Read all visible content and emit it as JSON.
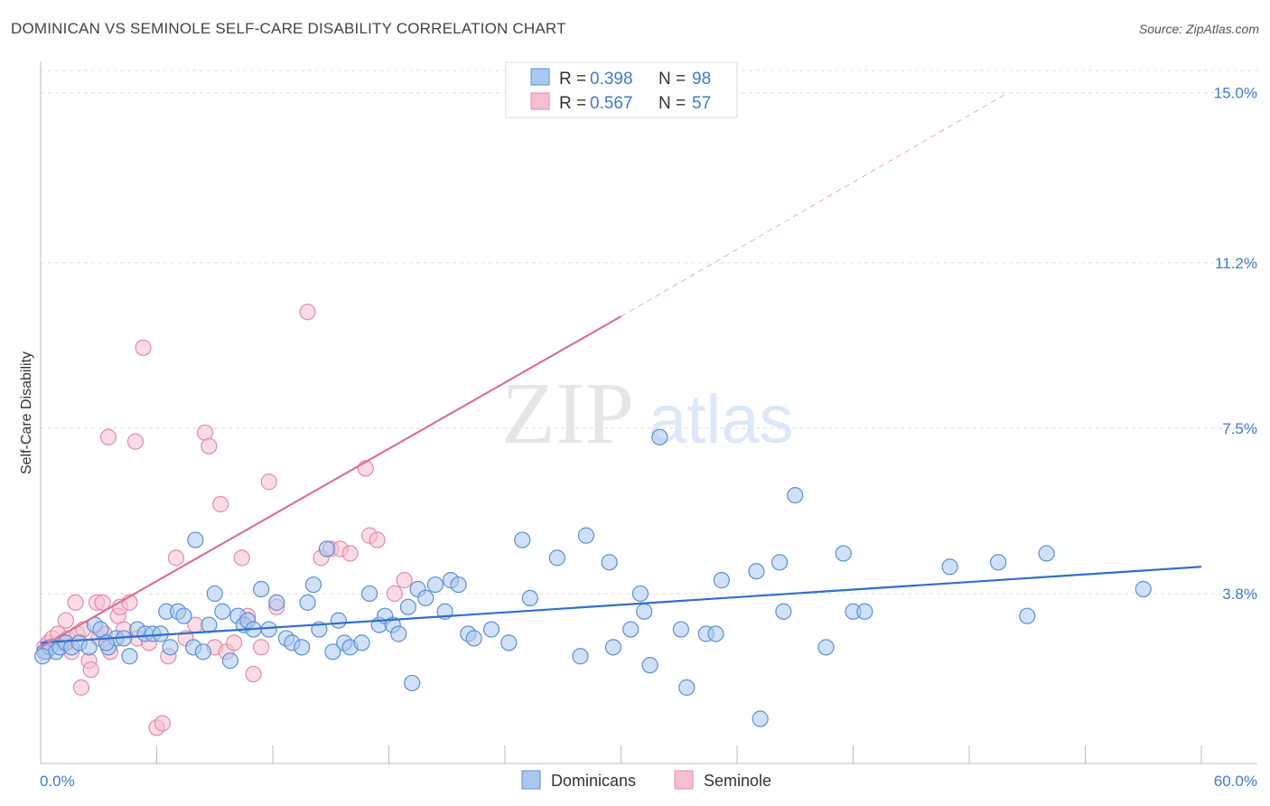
{
  "title": "DOMINICAN VS SEMINOLE SELF-CARE DISABILITY CORRELATION CHART",
  "source": "Source: ZipAtlas.com",
  "watermark": {
    "zip": "ZIP",
    "atlas": "atlas"
  },
  "legend": {
    "r_label": "R =",
    "n_label": "N =",
    "series": [
      {
        "r": "0.398",
        "n": "98"
      },
      {
        "r": "0.567",
        "n": "57"
      }
    ]
  },
  "colors": {
    "blue_fill": "#a9c8f0",
    "blue_stroke": "#5b8fd6",
    "blue_line": "#2f6fd0",
    "pink_fill": "#f7bfd0",
    "pink_stroke": "#e58aa8",
    "pink_line": "#e06e96",
    "tick_text": "#3f7bd1",
    "grid": "#dddddd"
  },
  "chart_data": {
    "type": "scatter",
    "title": "DOMINICAN VS SEMINOLE SELF-CARE DISABILITY CORRELATION CHART",
    "xlabel": "",
    "ylabel": "Self-Care Disability",
    "xlim": [
      0,
      60
    ],
    "ylim": [
      0,
      15.5
    ],
    "x_tick_labels": [
      "0.0%",
      "60.0%"
    ],
    "y_ticks": [
      3.8,
      7.5,
      11.2,
      15.0
    ],
    "y_tick_labels": [
      "3.8%",
      "7.5%",
      "11.2%",
      "15.0%"
    ],
    "series": [
      {
        "name": "Dominicans",
        "trend": {
          "x0": 0,
          "y0": 2.7,
          "x1": 60,
          "y1": 4.4,
          "dashed_to": null
        },
        "points": [
          [
            0.2,
            2.5
          ],
          [
            0.5,
            2.6
          ],
          [
            0.8,
            2.5
          ],
          [
            1.0,
            2.6
          ],
          [
            1.3,
            2.7
          ],
          [
            1.6,
            2.6
          ],
          [
            2.0,
            2.7
          ],
          [
            2.5,
            2.6
          ],
          [
            2.8,
            3.1
          ],
          [
            3.1,
            3.0
          ],
          [
            3.5,
            2.6
          ],
          [
            3.9,
            2.8
          ],
          [
            4.3,
            2.8
          ],
          [
            4.6,
            2.4
          ],
          [
            5.0,
            3.0
          ],
          [
            5.4,
            2.9
          ],
          [
            5.8,
            2.9
          ],
          [
            6.2,
            2.9
          ],
          [
            6.5,
            3.4
          ],
          [
            6.7,
            2.6
          ],
          [
            7.1,
            3.4
          ],
          [
            7.4,
            3.3
          ],
          [
            7.9,
            2.6
          ],
          [
            8.0,
            5.0
          ],
          [
            8.4,
            2.5
          ],
          [
            8.7,
            3.1
          ],
          [
            9.0,
            3.8
          ],
          [
            9.4,
            3.4
          ],
          [
            9.8,
            2.3
          ],
          [
            10.2,
            3.3
          ],
          [
            10.5,
            3.1
          ],
          [
            10.7,
            3.2
          ],
          [
            11.0,
            3.0
          ],
          [
            11.4,
            3.9
          ],
          [
            11.8,
            3.0
          ],
          [
            12.2,
            3.6
          ],
          [
            12.7,
            2.8
          ],
          [
            13.0,
            2.7
          ],
          [
            13.5,
            2.6
          ],
          [
            13.8,
            3.6
          ],
          [
            14.1,
            4.0
          ],
          [
            14.4,
            3.0
          ],
          [
            14.8,
            4.8
          ],
          [
            15.1,
            2.5
          ],
          [
            15.4,
            3.2
          ],
          [
            15.7,
            2.7
          ],
          [
            16.0,
            2.6
          ],
          [
            16.6,
            2.7
          ],
          [
            17.0,
            3.8
          ],
          [
            17.5,
            3.1
          ],
          [
            17.8,
            3.3
          ],
          [
            18.2,
            3.1
          ],
          [
            18.5,
            2.9
          ],
          [
            19.0,
            3.5
          ],
          [
            19.2,
            1.8
          ],
          [
            19.5,
            3.9
          ],
          [
            19.9,
            3.7
          ],
          [
            20.4,
            4.0
          ],
          [
            20.9,
            3.4
          ],
          [
            21.2,
            4.1
          ],
          [
            21.6,
            4.0
          ],
          [
            22.1,
            2.9
          ],
          [
            22.4,
            2.8
          ],
          [
            23.3,
            3.0
          ],
          [
            24.2,
            2.7
          ],
          [
            24.9,
            5.0
          ],
          [
            25.3,
            3.7
          ],
          [
            26.7,
            4.6
          ],
          [
            27.9,
            2.4
          ],
          [
            28.2,
            5.1
          ],
          [
            29.4,
            4.5
          ],
          [
            29.6,
            2.6
          ],
          [
            30.5,
            3.0
          ],
          [
            31.0,
            3.8
          ],
          [
            31.2,
            3.4
          ],
          [
            31.5,
            2.2
          ],
          [
            32.0,
            7.3
          ],
          [
            33.1,
            3.0
          ],
          [
            33.4,
            1.7
          ],
          [
            34.4,
            2.9
          ],
          [
            34.9,
            2.9
          ],
          [
            35.2,
            4.1
          ],
          [
            37.0,
            4.3
          ],
          [
            37.2,
            1.0
          ],
          [
            38.2,
            4.5
          ],
          [
            38.4,
            3.4
          ],
          [
            39.0,
            6.0
          ],
          [
            40.6,
            2.6
          ],
          [
            41.5,
            4.7
          ],
          [
            42.0,
            3.4
          ],
          [
            42.6,
            3.4
          ],
          [
            47.0,
            4.4
          ],
          [
            49.5,
            4.5
          ],
          [
            51.0,
            3.3
          ],
          [
            52.0,
            4.7
          ],
          [
            57.0,
            3.9
          ],
          [
            0.1,
            2.4
          ],
          [
            3.4,
            2.7
          ]
        ]
      },
      {
        "name": "Seminole",
        "trend": {
          "x0": 0,
          "y0": 2.6,
          "x1": 30,
          "y1": 10.0,
          "dashed_to": {
            "x": 50,
            "y": 15.0
          }
        },
        "points": [
          [
            0.2,
            2.6
          ],
          [
            0.4,
            2.7
          ],
          [
            0.6,
            2.8
          ],
          [
            0.9,
            2.9
          ],
          [
            1.1,
            2.7
          ],
          [
            1.3,
            3.2
          ],
          [
            1.4,
            2.8
          ],
          [
            1.6,
            2.5
          ],
          [
            1.8,
            3.6
          ],
          [
            1.9,
            2.9
          ],
          [
            2.1,
            1.7
          ],
          [
            2.2,
            3.0
          ],
          [
            2.5,
            2.3
          ],
          [
            2.6,
            2.1
          ],
          [
            2.9,
            3.6
          ],
          [
            3.0,
            2.8
          ],
          [
            3.2,
            3.6
          ],
          [
            3.3,
            2.9
          ],
          [
            3.5,
            7.3
          ],
          [
            3.6,
            2.5
          ],
          [
            4.0,
            3.3
          ],
          [
            4.1,
            3.5
          ],
          [
            4.3,
            3.0
          ],
          [
            4.6,
            3.6
          ],
          [
            4.9,
            7.2
          ],
          [
            5.0,
            2.8
          ],
          [
            5.3,
            9.3
          ],
          [
            5.6,
            2.7
          ],
          [
            6.0,
            0.8
          ],
          [
            6.3,
            0.9
          ],
          [
            6.6,
            2.4
          ],
          [
            7.0,
            4.6
          ],
          [
            7.5,
            2.8
          ],
          [
            8.0,
            3.1
          ],
          [
            8.5,
            7.4
          ],
          [
            8.7,
            7.1
          ],
          [
            9.0,
            2.6
          ],
          [
            9.3,
            5.8
          ],
          [
            9.6,
            2.5
          ],
          [
            10.0,
            2.7
          ],
          [
            10.4,
            4.6
          ],
          [
            10.7,
            3.3
          ],
          [
            11.0,
            2.0
          ],
          [
            11.4,
            2.6
          ],
          [
            11.8,
            6.3
          ],
          [
            12.2,
            3.5
          ],
          [
            13.8,
            10.1
          ],
          [
            14.5,
            4.6
          ],
          [
            15.0,
            4.8
          ],
          [
            15.5,
            4.8
          ],
          [
            16.0,
            4.7
          ],
          [
            16.8,
            6.6
          ],
          [
            17.0,
            5.1
          ],
          [
            17.4,
            5.0
          ],
          [
            18.3,
            3.8
          ],
          [
            18.8,
            4.1
          ],
          [
            0.3,
            2.5
          ]
        ]
      }
    ],
    "legend_entries": [
      "Dominicans",
      "Seminole"
    ]
  }
}
